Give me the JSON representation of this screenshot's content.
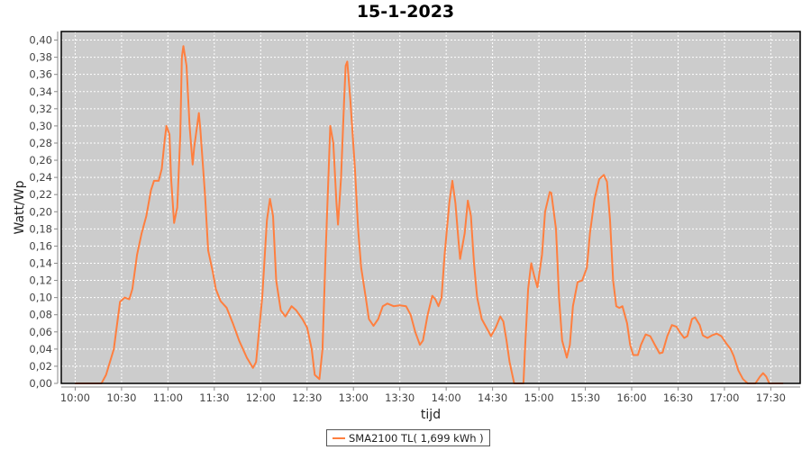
{
  "chart_data": {
    "type": "line",
    "title": "15-1-2023",
    "xlabel": "tijd",
    "ylabel": "Watt/Wp",
    "xlim": [
      "09:51",
      "17:49"
    ],
    "ylim": [
      0,
      0.41
    ],
    "grid": true,
    "legend_position": "bottom",
    "background": "#cccccc",
    "x_ticks": [
      "10:00",
      "10:30",
      "11:00",
      "11:30",
      "12:00",
      "12:30",
      "13:00",
      "13:30",
      "14:00",
      "14:30",
      "15:00",
      "15:30",
      "16:00",
      "16:30",
      "17:00",
      "17:30"
    ],
    "y_ticks": [
      "0,00",
      "0,02",
      "0,04",
      "0,06",
      "0,08",
      "0,10",
      "0,12",
      "0,14",
      "0,16",
      "0,18",
      "0,20",
      "0,22",
      "0,24",
      "0,26",
      "0,28",
      "0,30",
      "0,32",
      "0,34",
      "0,36",
      "0,38",
      "0,40"
    ],
    "series": [
      {
        "name": "SMA2100 TL( 1,699 kWh )",
        "color": "#ff7f3f",
        "points": [
          [
            "10:00",
            0
          ],
          [
            "10:17",
            0
          ],
          [
            "10:20",
            0.01
          ],
          [
            "10:25",
            0.04
          ],
          [
            "10:29",
            0.095
          ],
          [
            "10:32",
            0.1
          ],
          [
            "10:35",
            0.098
          ],
          [
            "10:37",
            0.11
          ],
          [
            "10:40",
            0.15
          ],
          [
            "10:43",
            0.175
          ],
          [
            "10:46",
            0.195
          ],
          [
            "10:49",
            0.225
          ],
          [
            "10:51",
            0.236
          ],
          [
            "10:54",
            0.236
          ],
          [
            "10:56",
            0.25
          ],
          [
            "10:58",
            0.285
          ],
          [
            "10:59",
            0.3
          ],
          [
            "11:01",
            0.29
          ],
          [
            "11:02",
            0.24
          ],
          [
            "11:04",
            0.187
          ],
          [
            "11:06",
            0.205
          ],
          [
            "11:08",
            0.29
          ],
          [
            "11:09",
            0.38
          ],
          [
            "11:10",
            0.393
          ],
          [
            "11:12",
            0.37
          ],
          [
            "11:14",
            0.3
          ],
          [
            "11:16",
            0.255
          ],
          [
            "11:17",
            0.275
          ],
          [
            "11:20",
            0.315
          ],
          [
            "11:21",
            0.295
          ],
          [
            "11:24",
            0.22
          ],
          [
            "11:26",
            0.155
          ],
          [
            "11:29",
            0.13
          ],
          [
            "11:31",
            0.11
          ],
          [
            "11:34",
            0.096
          ],
          [
            "11:38",
            0.088
          ],
          [
            "11:42",
            0.07
          ],
          [
            "11:46",
            0.05
          ],
          [
            "11:51",
            0.03
          ],
          [
            "11:55",
            0.018
          ],
          [
            "11:57",
            0.025
          ],
          [
            "12:01",
            0.1
          ],
          [
            "12:04",
            0.19
          ],
          [
            "12:06",
            0.215
          ],
          [
            "12:08",
            0.195
          ],
          [
            "12:10",
            0.12
          ],
          [
            "12:13",
            0.085
          ],
          [
            "12:16",
            0.078
          ],
          [
            "12:20",
            0.09
          ],
          [
            "12:23",
            0.085
          ],
          [
            "12:27",
            0.075
          ],
          [
            "12:30",
            0.065
          ],
          [
            "12:33",
            0.04
          ],
          [
            "12:35",
            0.01
          ],
          [
            "12:38",
            0.005
          ],
          [
            "12:40",
            0.04
          ],
          [
            "12:42",
            0.15
          ],
          [
            "12:44",
            0.25
          ],
          [
            "12:45",
            0.3
          ],
          [
            "12:47",
            0.28
          ],
          [
            "12:49",
            0.21
          ],
          [
            "12:50",
            0.185
          ],
          [
            "12:52",
            0.24
          ],
          [
            "12:54",
            0.33
          ],
          [
            "12:55",
            0.37
          ],
          [
            "12:56",
            0.375
          ],
          [
            "12:58",
            0.33
          ],
          [
            "13:01",
            0.25
          ],
          [
            "13:03",
            0.18
          ],
          [
            "13:05",
            0.135
          ],
          [
            "13:08",
            0.1
          ],
          [
            "13:10",
            0.075
          ],
          [
            "13:13",
            0.067
          ],
          [
            "13:16",
            0.075
          ],
          [
            "13:19",
            0.09
          ],
          [
            "13:22",
            0.093
          ],
          [
            "13:26",
            0.09
          ],
          [
            "13:30",
            0.091
          ],
          [
            "13:34",
            0.09
          ],
          [
            "13:37",
            0.08
          ],
          [
            "13:40",
            0.06
          ],
          [
            "13:43",
            0.045
          ],
          [
            "13:45",
            0.05
          ],
          [
            "13:48",
            0.08
          ],
          [
            "13:51",
            0.102
          ],
          [
            "13:53",
            0.098
          ],
          [
            "13:55",
            0.09
          ],
          [
            "13:57",
            0.1
          ],
          [
            "13:59",
            0.15
          ],
          [
            "14:02",
            0.21
          ],
          [
            "14:04",
            0.236
          ],
          [
            "14:06",
            0.21
          ],
          [
            "14:08",
            0.165
          ],
          [
            "14:09",
            0.145
          ],
          [
            "14:12",
            0.175
          ],
          [
            "14:14",
            0.213
          ],
          [
            "14:16",
            0.195
          ],
          [
            "14:18",
            0.14
          ],
          [
            "14:20",
            0.1
          ],
          [
            "14:23",
            0.075
          ],
          [
            "14:26",
            0.065
          ],
          [
            "14:29",
            0.055
          ],
          [
            "14:32",
            0.065
          ],
          [
            "14:35",
            0.078
          ],
          [
            "14:37",
            0.072
          ],
          [
            "14:39",
            0.05
          ],
          [
            "14:41",
            0.025
          ],
          [
            "14:44",
            0
          ],
          [
            "14:50",
            0
          ],
          [
            "14:51",
            0.04
          ],
          [
            "14:53",
            0.11
          ],
          [
            "14:55",
            0.14
          ],
          [
            "14:57",
            0.125
          ],
          [
            "14:59",
            0.112
          ],
          [
            "15:02",
            0.15
          ],
          [
            "15:04",
            0.2
          ],
          [
            "15:07",
            0.223
          ],
          [
            "15:08",
            0.222
          ],
          [
            "15:11",
            0.18
          ],
          [
            "15:13",
            0.1
          ],
          [
            "15:15",
            0.05
          ],
          [
            "15:18",
            0.03
          ],
          [
            "15:20",
            0.045
          ],
          [
            "15:22",
            0.09
          ],
          [
            "15:25",
            0.118
          ],
          [
            "15:28",
            0.12
          ],
          [
            "15:31",
            0.135
          ],
          [
            "15:33",
            0.175
          ],
          [
            "15:36",
            0.215
          ],
          [
            "15:39",
            0.238
          ],
          [
            "15:42",
            0.243
          ],
          [
            "15:44",
            0.235
          ],
          [
            "15:46",
            0.19
          ],
          [
            "15:48",
            0.12
          ],
          [
            "15:50",
            0.09
          ],
          [
            "15:52",
            0.088
          ],
          [
            "15:54",
            0.09
          ],
          [
            "15:57",
            0.07
          ],
          [
            "15:59",
            0.045
          ],
          [
            "16:01",
            0.033
          ],
          [
            "16:04",
            0.033
          ],
          [
            "16:06",
            0.045
          ],
          [
            "16:09",
            0.057
          ],
          [
            "16:12",
            0.055
          ],
          [
            "16:15",
            0.045
          ],
          [
            "16:18",
            0.035
          ],
          [
            "16:20",
            0.036
          ],
          [
            "16:23",
            0.055
          ],
          [
            "16:26",
            0.068
          ],
          [
            "16:29",
            0.066
          ],
          [
            "16:31",
            0.06
          ],
          [
            "16:34",
            0.053
          ],
          [
            "16:36",
            0.055
          ],
          [
            "16:39",
            0.075
          ],
          [
            "16:41",
            0.077
          ],
          [
            "16:44",
            0.068
          ],
          [
            "16:46",
            0.056
          ],
          [
            "16:49",
            0.053
          ],
          [
            "16:52",
            0.056
          ],
          [
            "16:55",
            0.058
          ],
          [
            "16:58",
            0.055
          ],
          [
            "17:01",
            0.047
          ],
          [
            "17:04",
            0.04
          ],
          [
            "17:06",
            0.032
          ],
          [
            "17:09",
            0.015
          ],
          [
            "17:12",
            0.005
          ],
          [
            "17:15",
            0
          ],
          [
            "17:20",
            0
          ],
          [
            "17:23",
            0.008
          ],
          [
            "17:25",
            0.012
          ],
          [
            "17:27",
            0.008
          ],
          [
            "17:29",
            0
          ],
          [
            "17:38",
            0
          ]
        ]
      }
    ]
  }
}
